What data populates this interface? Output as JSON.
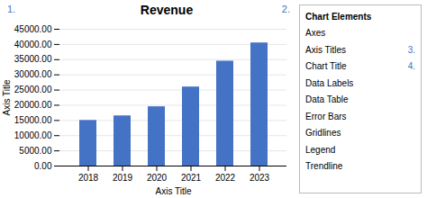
{
  "chart_data": {
    "type": "bar",
    "title": "Revenue",
    "xlabel": "Axis Title",
    "ylabel": "Axis Title",
    "categories": [
      "2018",
      "2019",
      "2020",
      "2021",
      "2022",
      "2023"
    ],
    "values": [
      15000,
      16500,
      19500,
      26000,
      34500,
      40500
    ],
    "color": "#4472c4",
    "ylim": [
      0,
      45000
    ],
    "yticks": [
      {
        "value": 0,
        "label": "0.00"
      },
      {
        "value": 5000,
        "label": "5000.00"
      },
      {
        "value": 10000,
        "label": "10000.00"
      },
      {
        "value": 15000,
        "label": "15000.00"
      },
      {
        "value": 20000,
        "label": "20000.00"
      },
      {
        "value": 25000,
        "label": "25000.00"
      },
      {
        "value": 30000,
        "label": "30000.00"
      },
      {
        "value": 35000,
        "label": "35000.00"
      },
      {
        "value": 40000,
        "label": "40000.00"
      },
      {
        "value": 45000,
        "label": "45000.00"
      }
    ],
    "grid": true,
    "annotations": [
      "1.",
      "2.",
      "3.",
      "4."
    ],
    "panel_title": "Chart Elements",
    "panel_items": [
      "Axes",
      "Axis Titles",
      "Chart Title",
      "Data Labels",
      "Data Table",
      "Error Bars",
      "Gridlines",
      "Legend",
      "Trendline"
    ]
  }
}
